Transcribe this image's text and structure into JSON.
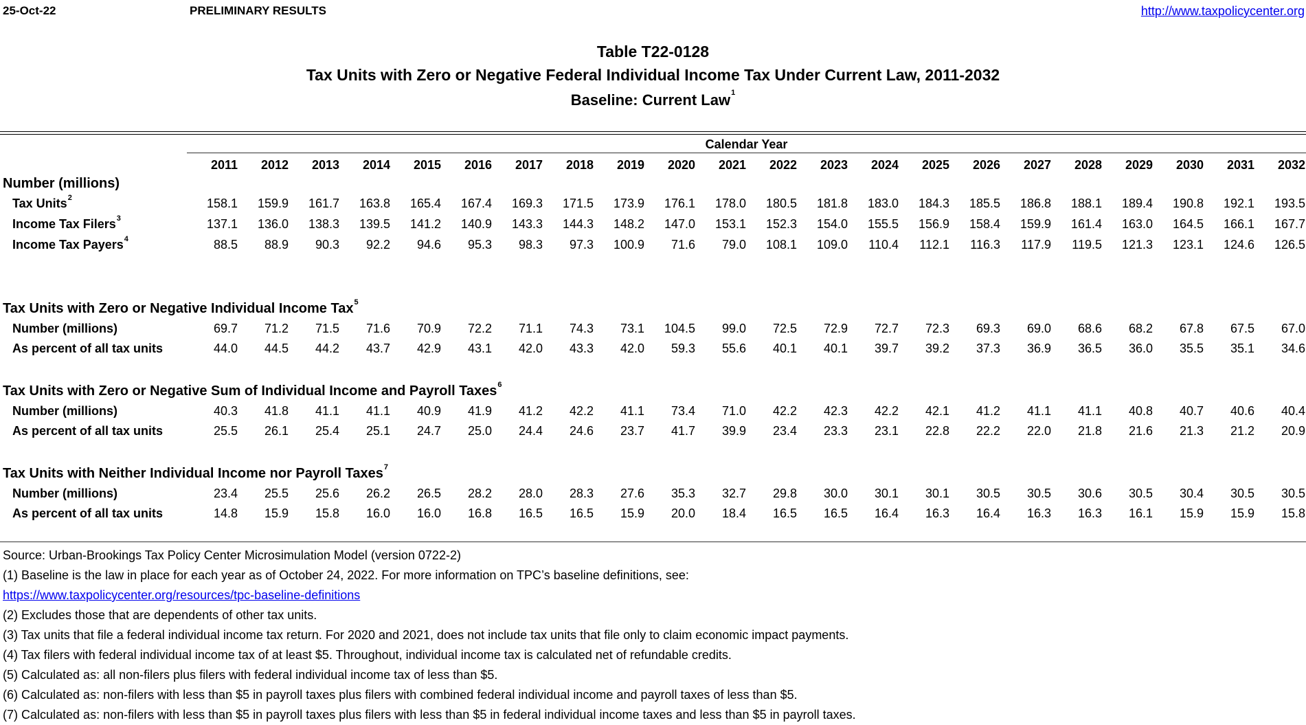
{
  "header": {
    "date": "25-Oct-22",
    "status": "PRELIMINARY RESULTS",
    "url": "http://www.taxpolicycenter.org"
  },
  "title": {
    "table_id": "Table T22-0128",
    "main": "Tax Units with Zero or Negative Federal Individual Income Tax Under Current Law, 2011-2032",
    "baseline": "Baseline: Current Law",
    "baseline_note": "1"
  },
  "columns": {
    "group_label": "Calendar Year",
    "years": [
      "2011",
      "2012",
      "2013",
      "2014",
      "2015",
      "2016",
      "2017",
      "2018",
      "2019",
      "2020",
      "2021",
      "2022",
      "2023",
      "2024",
      "2025",
      "2026",
      "2027",
      "2028",
      "2029",
      "2030",
      "2031",
      "2032"
    ]
  },
  "sections": [
    {
      "title": "Number (millions)",
      "note": "",
      "rows": [
        {
          "label": "Tax Units",
          "note": "2",
          "values": [
            "158.1",
            "159.9",
            "161.7",
            "163.8",
            "165.4",
            "167.4",
            "169.3",
            "171.5",
            "173.9",
            "176.1",
            "178.0",
            "180.5",
            "181.8",
            "183.0",
            "184.3",
            "185.5",
            "186.8",
            "188.1",
            "189.4",
            "190.8",
            "192.1",
            "193.5"
          ]
        },
        {
          "label": "Income Tax Filers",
          "note": "3",
          "values": [
            "137.1",
            "136.0",
            "138.3",
            "139.5",
            "141.2",
            "140.9",
            "143.3",
            "144.3",
            "148.2",
            "147.0",
            "153.1",
            "152.3",
            "154.0",
            "155.5",
            "156.9",
            "158.4",
            "159.9",
            "161.4",
            "163.0",
            "164.5",
            "166.1",
            "167.7"
          ]
        },
        {
          "label": "Income Tax Payers",
          "note": "4",
          "values": [
            "88.5",
            "88.9",
            "90.3",
            "92.2",
            "94.6",
            "95.3",
            "98.3",
            "97.3",
            "100.9",
            "71.6",
            "79.0",
            "108.1",
            "109.0",
            "110.4",
            "112.1",
            "116.3",
            "117.9",
            "119.5",
            "121.3",
            "123.1",
            "124.6",
            "126.5"
          ]
        }
      ]
    },
    {
      "title": "Tax Units with Zero or Negative Individual Income Tax",
      "note": "5",
      "rows": [
        {
          "label": "Number (millions)",
          "note": "",
          "values": [
            "69.7",
            "71.2",
            "71.5",
            "71.6",
            "70.9",
            "72.2",
            "71.1",
            "74.3",
            "73.1",
            "104.5",
            "99.0",
            "72.5",
            "72.9",
            "72.7",
            "72.3",
            "69.3",
            "69.0",
            "68.6",
            "68.2",
            "67.8",
            "67.5",
            "67.0"
          ]
        },
        {
          "label": "As percent of all tax units",
          "note": "",
          "values": [
            "44.0",
            "44.5",
            "44.2",
            "43.7",
            "42.9",
            "43.1",
            "42.0",
            "43.3",
            "42.0",
            "59.3",
            "55.6",
            "40.1",
            "40.1",
            "39.7",
            "39.2",
            "37.3",
            "36.9",
            "36.5",
            "36.0",
            "35.5",
            "35.1",
            "34.6"
          ]
        }
      ]
    },
    {
      "title": "Tax Units with Zero or Negative Sum of Individual Income and Payroll Taxes",
      "note": "6",
      "rows": [
        {
          "label": "Number (millions)",
          "note": "",
          "values": [
            "40.3",
            "41.8",
            "41.1",
            "41.1",
            "40.9",
            "41.9",
            "41.2",
            "42.2",
            "41.1",
            "73.4",
            "71.0",
            "42.2",
            "42.3",
            "42.2",
            "42.1",
            "41.2",
            "41.1",
            "41.1",
            "40.8",
            "40.7",
            "40.6",
            "40.4"
          ]
        },
        {
          "label": "As percent of all tax units",
          "note": "",
          "values": [
            "25.5",
            "26.1",
            "25.4",
            "25.1",
            "24.7",
            "25.0",
            "24.4",
            "24.6",
            "23.7",
            "41.7",
            "39.9",
            "23.4",
            "23.3",
            "23.1",
            "22.8",
            "22.2",
            "22.0",
            "21.8",
            "21.6",
            "21.3",
            "21.2",
            "20.9"
          ]
        }
      ]
    },
    {
      "title": "Tax Units with Neither Individual Income nor Payroll Taxes",
      "note": "7",
      "rows": [
        {
          "label": "Number (millions)",
          "note": "",
          "values": [
            "23.4",
            "25.5",
            "25.6",
            "26.2",
            "26.5",
            "28.2",
            "28.0",
            "28.3",
            "27.6",
            "35.3",
            "32.7",
            "29.8",
            "30.0",
            "30.1",
            "30.1",
            "30.5",
            "30.5",
            "30.6",
            "30.5",
            "30.4",
            "30.5",
            "30.5"
          ]
        },
        {
          "label": "As percent of all tax units",
          "note": "",
          "values": [
            "14.8",
            "15.9",
            "15.8",
            "16.0",
            "16.0",
            "16.8",
            "16.5",
            "16.5",
            "15.9",
            "20.0",
            "18.4",
            "16.5",
            "16.5",
            "16.4",
            "16.3",
            "16.4",
            "16.3",
            "16.3",
            "16.1",
            "15.9",
            "15.9",
            "15.8"
          ]
        }
      ]
    }
  ],
  "footnotes": {
    "source": "Source: Urban-Brookings Tax Policy Center Microsimulation Model (version 0722-2)",
    "n1": "(1) Baseline is the law in place for each year as of October 24, 2022. For more information on TPC’s baseline definitions, see:",
    "n1_link": "https://www.taxpolicycenter.org/resources/tpc-baseline-definitions",
    "n2": "(2) Excludes those that are dependents of other tax units.",
    "n3": "(3) Tax units that file a federal individual income tax return. For 2020 and 2021, does not include tax units that file only to claim economic impact payments.",
    "n4": "(4) Tax filers with federal individual income tax of at least $5. Throughout, individual income tax is calculated net of refundable credits.",
    "n5": "(5) Calculated as: all non-filers plus filers with federal individual income tax of less than $5.",
    "n6": "(6) Calculated as: non-filers with less than $5 in payroll taxes plus filers with combined federal individual income and payroll taxes of less than $5.",
    "n7": "(7) Calculated as: non-filers with less than $5 in payroll taxes plus filers with less than $5 in federal individual income taxes and less than $5 in payroll taxes."
  }
}
